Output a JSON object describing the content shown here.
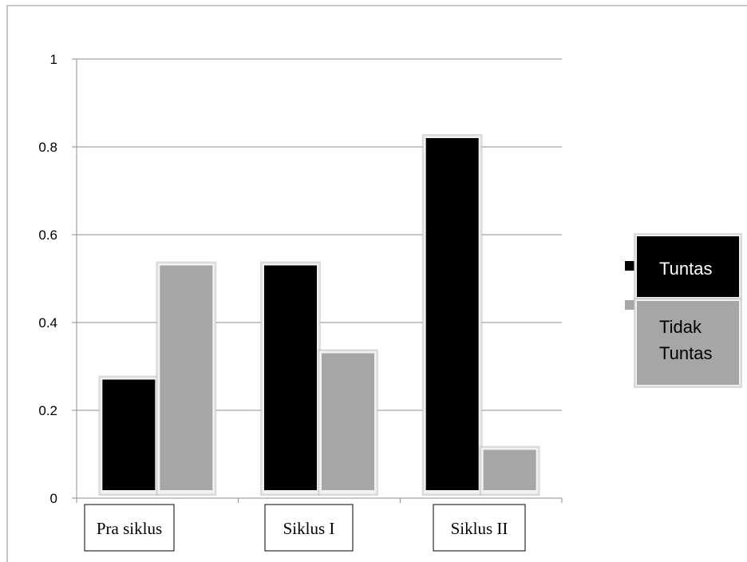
{
  "chart_data": {
    "type": "bar",
    "categories": [
      "Pra siklus",
      "Siklus I",
      "Siklus II"
    ],
    "series": [
      {
        "name": "Tuntas",
        "values": [
          0.27,
          0.53,
          0.82
        ]
      },
      {
        "name": "Tidak Tuntas",
        "values": [
          0.53,
          0.33,
          0.11
        ]
      }
    ],
    "ylim": [
      0,
      1
    ],
    "yticks": [
      "0",
      "0.2",
      "0.4",
      "0.6",
      "0.8",
      "1"
    ],
    "grid": true,
    "legend_position": "right",
    "colors": {
      "Tuntas": "#000000",
      "Tidak Tuntas": "#a6a6a6"
    }
  }
}
